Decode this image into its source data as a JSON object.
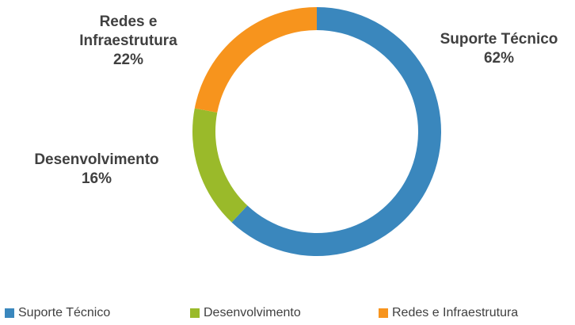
{
  "chart_data": {
    "type": "donut",
    "categories": [
      "Suporte Técnico",
      "Desenvolvimento",
      "Redes e Infraestrutura"
    ],
    "values": [
      62,
      16,
      22
    ],
    "value_labels": [
      "62%",
      "16%",
      "22%"
    ],
    "colors": [
      "#3a87bd",
      "#9aba2a",
      "#f7941d"
    ],
    "legend": "bottom"
  }
}
